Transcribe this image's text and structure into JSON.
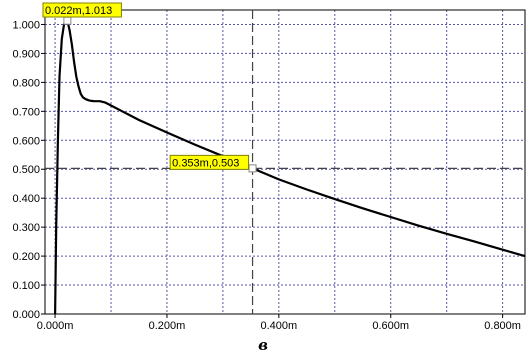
{
  "caption": "в",
  "colors": {
    "grid": "#5555aa",
    "curve": "#000000",
    "marker_fill": "#ffff00",
    "marker_border": "#808000",
    "cursor": "#444444"
  },
  "chart_data": {
    "type": "line",
    "xlim": [
      -0.018,
      0.84
    ],
    "ylim": [
      0,
      1.05
    ],
    "x_ticks": [
      0.0,
      0.2,
      0.4,
      0.6,
      0.8
    ],
    "x_tick_labels": [
      "0.000m",
      "0.200m",
      "0.400m",
      "0.600m",
      "0.800m"
    ],
    "y_ticks": [
      0.0,
      0.1,
      0.2,
      0.3,
      0.4,
      0.5,
      0.6,
      0.7,
      0.8,
      0.9,
      1.0
    ],
    "y_tick_labels": [
      "0.000",
      "0.100",
      "0.200",
      "0.300",
      "0.400",
      "0.500",
      "0.600",
      "0.700",
      "0.800",
      "0.900",
      "1.000"
    ],
    "grid": true,
    "series": [
      {
        "x": [
          0.0,
          0.002,
          0.005,
          0.008,
          0.012,
          0.016,
          0.02,
          0.022,
          0.026,
          0.03,
          0.034,
          0.038,
          0.042,
          0.046,
          0.05,
          0.055,
          0.06,
          0.065,
          0.07,
          0.08,
          0.09,
          0.1,
          0.15,
          0.2,
          0.25,
          0.3,
          0.353,
          0.4,
          0.45,
          0.5,
          0.55,
          0.6,
          0.65,
          0.7,
          0.75,
          0.8,
          0.84
        ],
        "y": [
          0.0,
          0.3,
          0.6,
          0.82,
          0.95,
          1.0,
          1.012,
          1.013,
          0.98,
          0.93,
          0.87,
          0.82,
          0.785,
          0.76,
          0.748,
          0.742,
          0.738,
          0.736,
          0.735,
          0.735,
          0.73,
          0.72,
          0.67,
          0.627,
          0.585,
          0.545,
          0.503,
          0.465,
          0.43,
          0.397,
          0.365,
          0.335,
          0.305,
          0.277,
          0.25,
          0.222,
          0.2
        ]
      }
    ],
    "markers": [
      {
        "x": 0.022,
        "y": 1.013,
        "label": "0.022m,1.013"
      },
      {
        "x": 0.353,
        "y": 0.503,
        "label": "0.353m,0.503"
      }
    ],
    "cursor": {
      "x": 0.353,
      "y": 0.503
    }
  }
}
